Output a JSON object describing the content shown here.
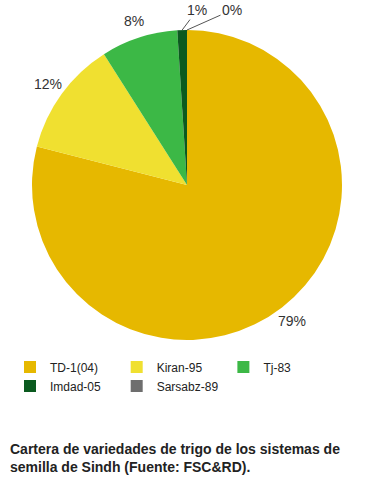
{
  "chart_data": {
    "type": "pie",
    "title": "Cartera de variedades de trigo de los sistemas de semilla de Sindh (Fuente: FSC&RD).",
    "categories": [
      "TD-1(04)",
      "Kiran-95",
      "Tj-83",
      "Imdad-05",
      "Sarsabz-89"
    ],
    "values": [
      79,
      12,
      8,
      1,
      0
    ],
    "value_labels": [
      "79%",
      "12%",
      "8%",
      "1%",
      "0%"
    ],
    "colors": [
      "#e6b800",
      "#f0e030",
      "#3cb846",
      "#0b5a1f",
      "#6e6e6e"
    ],
    "data_labels": true,
    "legend": "bottom"
  }
}
